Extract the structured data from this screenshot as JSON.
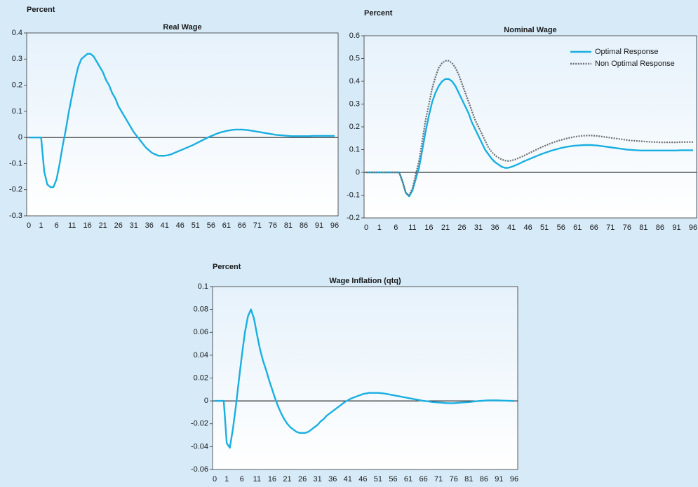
{
  "chart_data": [
    {
      "type": "line",
      "title": "Real Wage",
      "y_label": "Percent",
      "categories": [
        "0",
        null,
        null,
        null,
        "1",
        null,
        null,
        null,
        null,
        "6",
        null,
        null,
        null,
        null,
        "11",
        null,
        null,
        null,
        null,
        "16",
        null,
        null,
        null,
        null,
        "21",
        null,
        null,
        null,
        null,
        "26",
        null,
        null,
        null,
        null,
        "31",
        null,
        null,
        null,
        null,
        "36",
        null,
        null,
        null,
        null,
        "41",
        null,
        null,
        null,
        null,
        "46",
        null,
        null,
        null,
        null,
        "51",
        null,
        null,
        null,
        null,
        "56",
        null,
        null,
        null,
        null,
        "61",
        null,
        null,
        null,
        null,
        "66",
        null,
        null,
        null,
        null,
        "71",
        null,
        null,
        null,
        null,
        "76",
        null,
        null,
        null,
        null,
        "81",
        null,
        null,
        null,
        null,
        "86",
        null,
        null,
        null,
        null,
        "91",
        null,
        null,
        null,
        null,
        "96"
      ],
      "ylim": [
        -0.3,
        0.4
      ],
      "yticks": [
        -0.3,
        -0.2,
        -0.1,
        0,
        0.1,
        0.2,
        0.3,
        0.4
      ],
      "series": [
        {
          "color": "#1aafe0",
          "style": "solid",
          "values": [
            0,
            0,
            0,
            0,
            0,
            -0.13,
            -0.18,
            -0.19,
            -0.19,
            -0.16,
            -0.1,
            -0.03,
            0.03,
            0.1,
            0.16,
            0.22,
            0.27,
            0.3,
            0.31,
            0.32,
            0.32,
            0.31,
            0.29,
            0.27,
            0.25,
            0.22,
            0.2,
            0.17,
            0.15,
            0.12,
            0.1,
            0.08,
            0.06,
            0.04,
            0.02,
            0.005,
            -0.01,
            -0.025,
            -0.04,
            -0.05,
            -0.06,
            -0.065,
            -0.07,
            -0.07,
            -0.07,
            -0.068,
            -0.065,
            -0.06,
            -0.055,
            -0.05,
            -0.045,
            -0.04,
            -0.035,
            -0.03,
            -0.024,
            -0.018,
            -0.012,
            -0.006,
            0,
            0.005,
            0.01,
            0.015,
            0.019,
            0.022,
            0.025,
            0.027,
            0.029,
            0.03,
            0.03,
            0.03,
            0.029,
            0.028,
            0.026,
            0.024,
            0.022,
            0.02,
            0.018,
            0.016,
            0.014,
            0.012,
            0.01,
            0.009,
            0.008,
            0.007,
            0.006,
            0.005,
            0.005,
            0.005,
            0.005,
            0.005,
            0.005,
            0.005,
            0.006,
            0.006,
            0.006,
            0.006,
            0.006,
            0.006,
            0.006,
            0.006
          ]
        }
      ]
    },
    {
      "type": "line",
      "title": "Nominal Wage",
      "y_label": "Percent",
      "legend": "upper right",
      "categories": [
        "0",
        null,
        null,
        null,
        "1",
        null,
        null,
        null,
        null,
        "6",
        null,
        null,
        null,
        null,
        "11",
        null,
        null,
        null,
        null,
        "16",
        null,
        null,
        null,
        null,
        "21",
        null,
        null,
        null,
        null,
        "26",
        null,
        null,
        null,
        null,
        "31",
        null,
        null,
        null,
        null,
        "36",
        null,
        null,
        null,
        null,
        "41",
        null,
        null,
        null,
        null,
        "46",
        null,
        null,
        null,
        null,
        "51",
        null,
        null,
        null,
        null,
        "56",
        null,
        null,
        null,
        null,
        "61",
        null,
        null,
        null,
        null,
        "66",
        null,
        null,
        null,
        null,
        "71",
        null,
        null,
        null,
        null,
        "76",
        null,
        null,
        null,
        null,
        "81",
        null,
        null,
        null,
        null,
        "86",
        null,
        null,
        null,
        null,
        "91",
        null,
        null,
        null,
        null,
        "96"
      ],
      "ylim": [
        -0.2,
        0.6
      ],
      "yticks": [
        -0.2,
        -0.1,
        0,
        0.1,
        0.2,
        0.3,
        0.4,
        0.5,
        0.6
      ],
      "series": [
        {
          "name": "Optimal Response",
          "color": "#1aafe0",
          "style": "solid",
          "values": [
            0,
            0,
            0,
            0,
            0,
            0,
            0,
            0,
            0,
            0,
            0,
            -0.04,
            -0.09,
            -0.105,
            -0.08,
            -0.03,
            0.02,
            0.1,
            0.18,
            0.25,
            0.31,
            0.35,
            0.38,
            0.4,
            0.41,
            0.41,
            0.4,
            0.38,
            0.35,
            0.32,
            0.29,
            0.26,
            0.22,
            0.19,
            0.16,
            0.13,
            0.1,
            0.08,
            0.06,
            0.045,
            0.035,
            0.025,
            0.02,
            0.02,
            0.024,
            0.03,
            0.036,
            0.043,
            0.05,
            0.056,
            0.062,
            0.068,
            0.074,
            0.08,
            0.085,
            0.09,
            0.095,
            0.099,
            0.103,
            0.107,
            0.11,
            0.113,
            0.115,
            0.117,
            0.118,
            0.119,
            0.12,
            0.12,
            0.12,
            0.119,
            0.118,
            0.116,
            0.114,
            0.112,
            0.11,
            0.108,
            0.106,
            0.104,
            0.102,
            0.1,
            0.099,
            0.098,
            0.097,
            0.096,
            0.096,
            0.096,
            0.096,
            0.096,
            0.096,
            0.096,
            0.096,
            0.096,
            0.096,
            0.096,
            0.096,
            0.097,
            0.097,
            0.097,
            0.097,
            0.097
          ]
        },
        {
          "name": "Non Optimal Response",
          "color": "#6d6e71",
          "style": "dotted",
          "values": [
            0,
            0,
            0,
            0,
            0,
            0,
            0,
            0,
            0,
            0,
            0,
            -0.04,
            -0.09,
            -0.1,
            -0.07,
            -0.01,
            0.05,
            0.14,
            0.23,
            0.3,
            0.37,
            0.42,
            0.46,
            0.48,
            0.49,
            0.49,
            0.48,
            0.46,
            0.43,
            0.39,
            0.35,
            0.31,
            0.27,
            0.23,
            0.2,
            0.17,
            0.14,
            0.11,
            0.09,
            0.075,
            0.065,
            0.057,
            0.052,
            0.05,
            0.052,
            0.056,
            0.062,
            0.068,
            0.075,
            0.082,
            0.089,
            0.096,
            0.103,
            0.11,
            0.116,
            0.122,
            0.128,
            0.133,
            0.138,
            0.142,
            0.146,
            0.15,
            0.153,
            0.156,
            0.158,
            0.16,
            0.161,
            0.162,
            0.162,
            0.161,
            0.16,
            0.158,
            0.156,
            0.154,
            0.152,
            0.15,
            0.148,
            0.146,
            0.144,
            0.142,
            0.14,
            0.139,
            0.138,
            0.137,
            0.136,
            0.135,
            0.134,
            0.133,
            0.133,
            0.132,
            0.132,
            0.132,
            0.132,
            0.132,
            0.132,
            0.133,
            0.133,
            0.133,
            0.133,
            0.133
          ]
        }
      ]
    },
    {
      "type": "line",
      "title": "Wage Inflation (qtq)",
      "y_label": "Percent",
      "categories": [
        "0",
        null,
        null,
        null,
        "1",
        null,
        null,
        null,
        null,
        "6",
        null,
        null,
        null,
        null,
        "11",
        null,
        null,
        null,
        null,
        "16",
        null,
        null,
        null,
        null,
        "21",
        null,
        null,
        null,
        null,
        "26",
        null,
        null,
        null,
        null,
        "31",
        null,
        null,
        null,
        null,
        "36",
        null,
        null,
        null,
        null,
        "41",
        null,
        null,
        null,
        null,
        "46",
        null,
        null,
        null,
        null,
        "51",
        null,
        null,
        null,
        null,
        "56",
        null,
        null,
        null,
        null,
        "61",
        null,
        null,
        null,
        null,
        "66",
        null,
        null,
        null,
        null,
        "71",
        null,
        null,
        null,
        null,
        "76",
        null,
        null,
        null,
        null,
        "81",
        null,
        null,
        null,
        null,
        "86",
        null,
        null,
        null,
        null,
        "91",
        null,
        null,
        null,
        null,
        "96"
      ],
      "ylim": [
        -0.06,
        0.1
      ],
      "yticks": [
        -0.06,
        -0.04,
        -0.02,
        0,
        0.02,
        0.04,
        0.06,
        0.08,
        0.1
      ],
      "series": [
        {
          "color": "#1aafe0",
          "style": "solid",
          "values": [
            0,
            0,
            0,
            0,
            -0.037,
            -0.041,
            -0.025,
            -0.005,
            0.018,
            0.04,
            0.06,
            0.074,
            0.08,
            0.072,
            0.058,
            0.045,
            0.035,
            0.027,
            0.018,
            0.01,
            0.002,
            -0.005,
            -0.011,
            -0.016,
            -0.02,
            -0.023,
            -0.025,
            -0.027,
            -0.028,
            -0.028,
            -0.028,
            -0.027,
            -0.025,
            -0.023,
            -0.021,
            -0.018,
            -0.016,
            -0.013,
            -0.011,
            -0.009,
            -0.007,
            -0.005,
            -0.003,
            -0.001,
            0.0005,
            0.002,
            0.003,
            0.004,
            0.005,
            0.006,
            0.0065,
            0.007,
            0.007,
            0.007,
            0.007,
            0.0068,
            0.0065,
            0.006,
            0.0055,
            0.005,
            0.0045,
            0.004,
            0.0035,
            0.003,
            0.0025,
            0.002,
            0.0015,
            0.001,
            0.0005,
            0,
            -0.0003,
            -0.0006,
            -0.001,
            -0.0012,
            -0.0014,
            -0.0016,
            -0.0018,
            -0.002,
            -0.002,
            -0.002,
            -0.0018,
            -0.0016,
            -0.0014,
            -0.0012,
            -0.001,
            -0.0007,
            -0.0004,
            -0.0002,
            0,
            0.0002,
            0.0004,
            0.0005,
            0.0005,
            0.0005,
            0.0004,
            0.0003,
            0.0002,
            0.0001,
            0,
            0
          ]
        }
      ]
    }
  ]
}
